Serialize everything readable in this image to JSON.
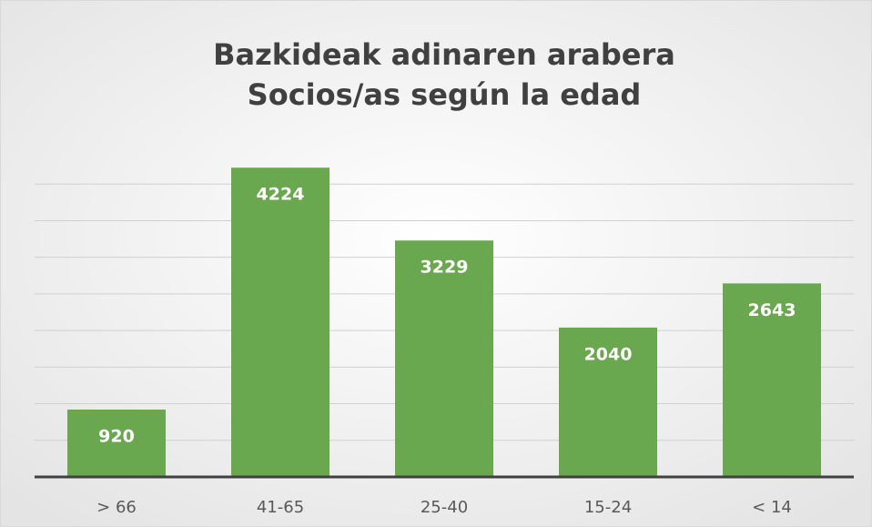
{
  "chart_data": {
    "type": "bar",
    "title": [
      "Bazkideak adinaren arabera",
      "Socios/as según la edad"
    ],
    "categories": [
      "> 66",
      "41-65",
      "25-40",
      "15-24",
      "< 14"
    ],
    "values": [
      920,
      4224,
      3229,
      2040,
      2643
    ],
    "color": "#6aa84f",
    "ylim": [
      0,
      4500
    ],
    "yticks": [
      0,
      500,
      1000,
      1500,
      2000,
      2500,
      3000,
      3500,
      4000
    ],
    "grid": true
  }
}
